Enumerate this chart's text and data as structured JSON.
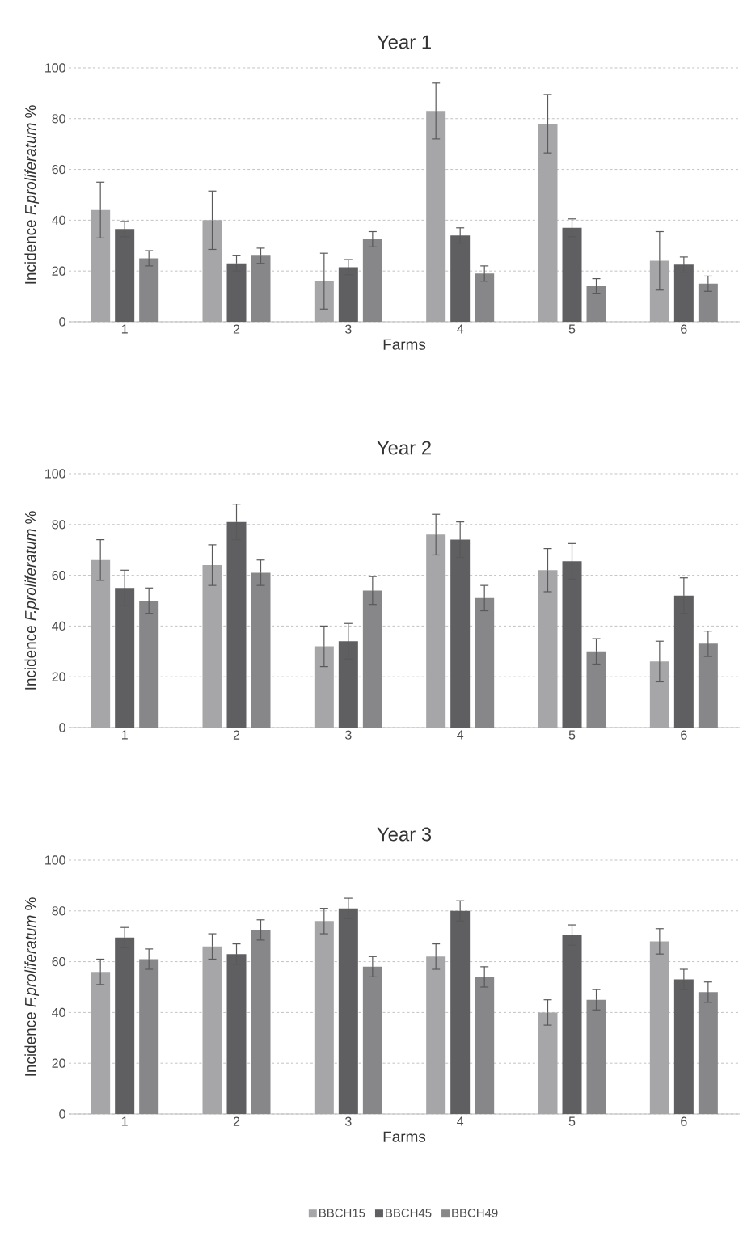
{
  "chart_data": [
    {
      "type": "bar",
      "title": "Year 1",
      "xlabel": "Farms",
      "ylabel": "Incidence *F.proliferatum* %",
      "categories": [
        "1",
        "2",
        "3",
        "4",
        "5",
        "6"
      ],
      "ylim": [
        0,
        100
      ],
      "yticks": [
        0,
        20,
        40,
        60,
        80,
        100
      ],
      "grid": "y",
      "legend": false,
      "series": [
        {
          "color": "#a6a6a8",
          "values": [
            44,
            40,
            16,
            83,
            78,
            24
          ],
          "errors": [
            11,
            11.5,
            11,
            11,
            11.5,
            11.5
          ]
        },
        {
          "color": "#5f5f62",
          "values": [
            36.5,
            23,
            21.5,
            34,
            37,
            22.5
          ],
          "errors": [
            3,
            3,
            3,
            3,
            3.5,
            3
          ]
        },
        {
          "color": "#87878a",
          "values": [
            25,
            26,
            32.5,
            19,
            14,
            15
          ],
          "errors": [
            3,
            3,
            3,
            3,
            3,
            3
          ]
        }
      ]
    },
    {
      "type": "bar",
      "title": "Year 2",
      "ylabel": "Incidence *F.proliferatum* %",
      "categories": [
        "1",
        "2",
        "3",
        "4",
        "5",
        "6"
      ],
      "ylim": [
        0,
        100
      ],
      "yticks": [
        0,
        20,
        40,
        60,
        80,
        100
      ],
      "grid": "y",
      "legend": false,
      "series": [
        {
          "color": "#a6a6a8",
          "values": [
            66,
            64,
            32,
            76,
            62,
            26
          ],
          "errors": [
            8,
            8,
            8,
            8,
            8.5,
            8
          ]
        },
        {
          "color": "#5f5f62",
          "values": [
            55,
            81,
            34,
            74,
            65.5,
            52
          ],
          "errors": [
            7,
            7,
            7,
            7,
            7,
            7
          ]
        },
        {
          "color": "#87878a",
          "values": [
            50,
            61,
            54,
            51,
            30,
            33
          ],
          "errors": [
            5,
            5,
            5.5,
            5,
            5,
            5
          ]
        }
      ]
    },
    {
      "type": "bar",
      "title": "Year 3",
      "xlabel": "Farms",
      "ylabel": "Incidence *F.proliferatum* %",
      "categories": [
        "1",
        "2",
        "3",
        "4",
        "5",
        "6"
      ],
      "ylim": [
        0,
        100
      ],
      "yticks": [
        0,
        20,
        40,
        60,
        80,
        100
      ],
      "grid": "y",
      "legend": "bottom",
      "series": [
        {
          "name": "BBCH15",
          "color": "#a6a6a8",
          "values": [
            56,
            66,
            76,
            62,
            40,
            68
          ],
          "errors": [
            5,
            5,
            5,
            5,
            5,
            5
          ]
        },
        {
          "name": "BBCH45",
          "color": "#5f5f62",
          "values": [
            69.5,
            63,
            81,
            80,
            70.5,
            53
          ],
          "errors": [
            4,
            4,
            4,
            4,
            4,
            4
          ]
        },
        {
          "name": "BBCH49",
          "color": "#87878a",
          "values": [
            61,
            72.5,
            58,
            54,
            45,
            48
          ],
          "errors": [
            4,
            4,
            4,
            4,
            4,
            4
          ]
        }
      ]
    }
  ]
}
